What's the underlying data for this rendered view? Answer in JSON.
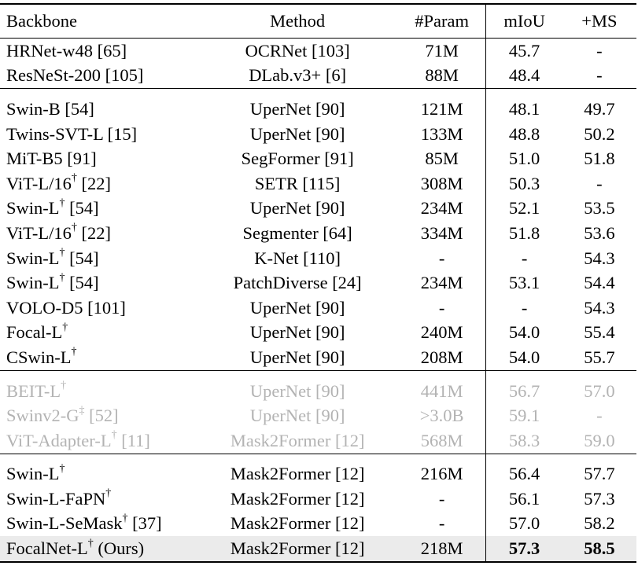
{
  "columns": [
    "Backbone",
    "Method",
    "#Param",
    "mIoU",
    "+MS"
  ],
  "groups": [
    {
      "rows": [
        {
          "backbone": "HRNet-w48 [65]",
          "mark": "",
          "ref": "",
          "method": "OCRNet [103]",
          "param": "71M",
          "miou": "45.7",
          "ms": "-"
        },
        {
          "backbone": "ResNeSt-200 [105]",
          "mark": "",
          "ref": "",
          "method": "DLab.v3+ [6]",
          "param": "88M",
          "miou": "48.4",
          "ms": "-"
        }
      ]
    },
    {
      "rows": [
        {
          "backbone": "Swin-B [54]",
          "mark": "",
          "ref": "",
          "method": "UperNet [90]",
          "param": "121M",
          "miou": "48.1",
          "ms": "49.7"
        },
        {
          "backbone": "Twins-SVT-L [15]",
          "mark": "",
          "ref": "",
          "method": "UperNet [90]",
          "param": "133M",
          "miou": "48.8",
          "ms": "50.2"
        },
        {
          "backbone": "MiT-B5 [91]",
          "mark": "",
          "ref": "",
          "method": "SegFormer [91]",
          "param": "85M",
          "miou": "51.0",
          "ms": "51.8"
        },
        {
          "backbone": "ViT-L/16",
          "mark": "†",
          "ref": " [22]",
          "method": "SETR [115]",
          "param": "308M",
          "miou": "50.3",
          "ms": "-"
        },
        {
          "backbone": "Swin-L",
          "mark": "†",
          "ref": " [54]",
          "method": "UperNet [90]",
          "param": "234M",
          "miou": "52.1",
          "ms": "53.5"
        },
        {
          "backbone": "ViT-L/16",
          "mark": "†",
          "ref": " [22]",
          "method": "Segmenter [64]",
          "param": "334M",
          "miou": "51.8",
          "ms": "53.6"
        },
        {
          "backbone": "Swin-L",
          "mark": "†",
          "ref": " [54]",
          "method": "K-Net [110]",
          "param": "-",
          "miou": "-",
          "ms": "54.3"
        },
        {
          "backbone": "Swin-L",
          "mark": "†",
          "ref": " [54]",
          "method": "PatchDiverse [24]",
          "param": "234M",
          "miou": "53.1",
          "ms": "54.4"
        },
        {
          "backbone": "VOLO-D5 [101]",
          "mark": "",
          "ref": "",
          "method": "UperNet [90]",
          "param": "-",
          "miou": "-",
          "ms": "54.3"
        },
        {
          "backbone": "Focal-L",
          "mark": "†",
          "ref": "",
          "method": "UperNet [90]",
          "param": "240M",
          "miou": "54.0",
          "ms": "55.4"
        },
        {
          "backbone": "CSwin-L",
          "mark": "†",
          "ref": "",
          "method": "UperNet [90]",
          "param": "208M",
          "miou": "54.0",
          "ms": "55.7"
        }
      ]
    },
    {
      "rows": [
        {
          "backbone": "BEIT-L",
          "mark": "†",
          "ref": "",
          "method": "UperNet [90]",
          "param": "441M",
          "miou": "56.7",
          "ms": "57.0"
        },
        {
          "backbone": "Swinv2-G",
          "mark": "‡",
          "ref": " [52]",
          "method": "UperNet [90]",
          "param": ">3.0B",
          "miou": "59.1",
          "ms": "-"
        },
        {
          "backbone": "ViT-Adapter-L",
          "mark": "†",
          "ref": " [11]",
          "method": "Mask2Former [12]",
          "param": "568M",
          "miou": "58.3",
          "ms": "59.0"
        }
      ]
    },
    {
      "rows": [
        {
          "backbone": "Swin-L",
          "mark": "†",
          "ref": "",
          "method": "Mask2Former [12]",
          "param": "216M",
          "miou": "56.4",
          "ms": "57.7"
        },
        {
          "backbone": "Swin-L-FaPN",
          "mark": "†",
          "ref": "",
          "method": "Mask2Former [12]",
          "param": "-",
          "miou": "56.1",
          "ms": "57.3"
        },
        {
          "backbone": "Swin-L-SeMask",
          "mark": "†",
          "ref": " [37]",
          "method": "Mask2Former [12]",
          "param": "-",
          "miou": "57.0",
          "ms": "58.2"
        },
        {
          "backbone": "FocalNet-L",
          "mark": "†",
          "ref": " (Ours)",
          "method": "Mask2Former [12]",
          "param": "218M",
          "miou": "57.3",
          "ms": "58.5"
        }
      ]
    }
  ],
  "styles": {
    "gray_group_index": 2,
    "highlight_row": {
      "group": 3,
      "row": 3,
      "background": "#ebebeb",
      "bold_columns": [
        "miou",
        "ms"
      ]
    },
    "muted_text_color": "#b3b3b3"
  }
}
